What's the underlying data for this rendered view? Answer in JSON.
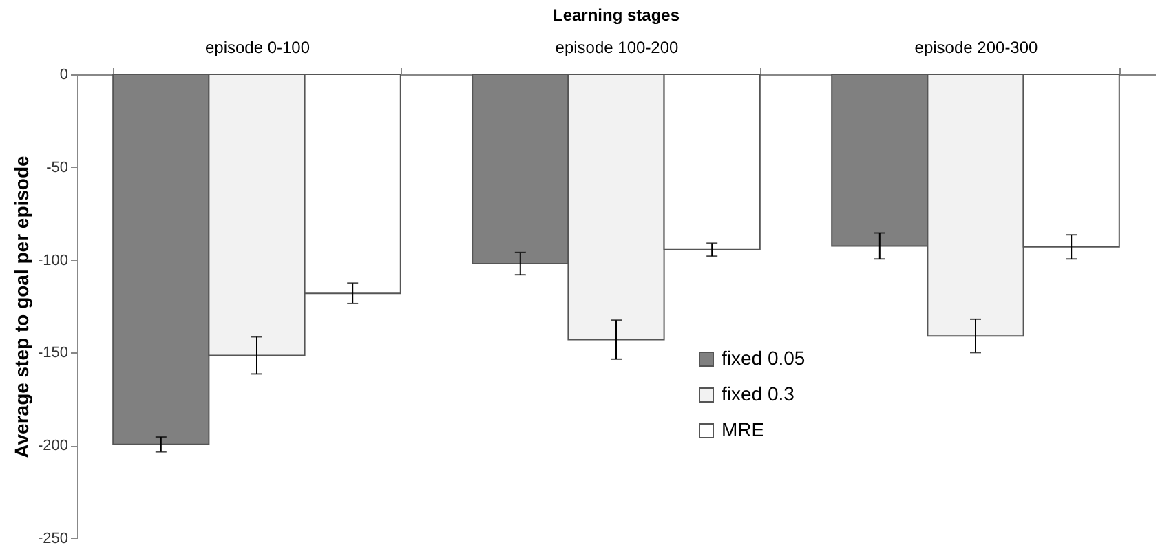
{
  "chart_data": {
    "type": "bar",
    "title": "Learning stages",
    "ylabel": "Average step to goal per episode",
    "categories": [
      "episode 0-100",
      "episode 100-200",
      "episode 200-300"
    ],
    "series": [
      {
        "name": "fixed 0.05",
        "color": "#808080",
        "values": [
          -199.5,
          -102,
          -92.5
        ],
        "errors": [
          4,
          6,
          7
        ]
      },
      {
        "name": "fixed 0.3",
        "color": "#f2f2f2",
        "values": [
          -151.5,
          -143,
          -141
        ],
        "errors": [
          10,
          10.5,
          9
        ]
      },
      {
        "name": "MRE",
        "color": "#ffffff",
        "values": [
          -118,
          -94.5,
          -93
        ],
        "errors": [
          5.5,
          3.5,
          6.5
        ]
      }
    ],
    "ylim": [
      -250,
      0
    ],
    "yticks": [
      -250,
      -200,
      -150,
      -100,
      -50,
      0
    ],
    "grid": false,
    "legend": "bottom right"
  }
}
